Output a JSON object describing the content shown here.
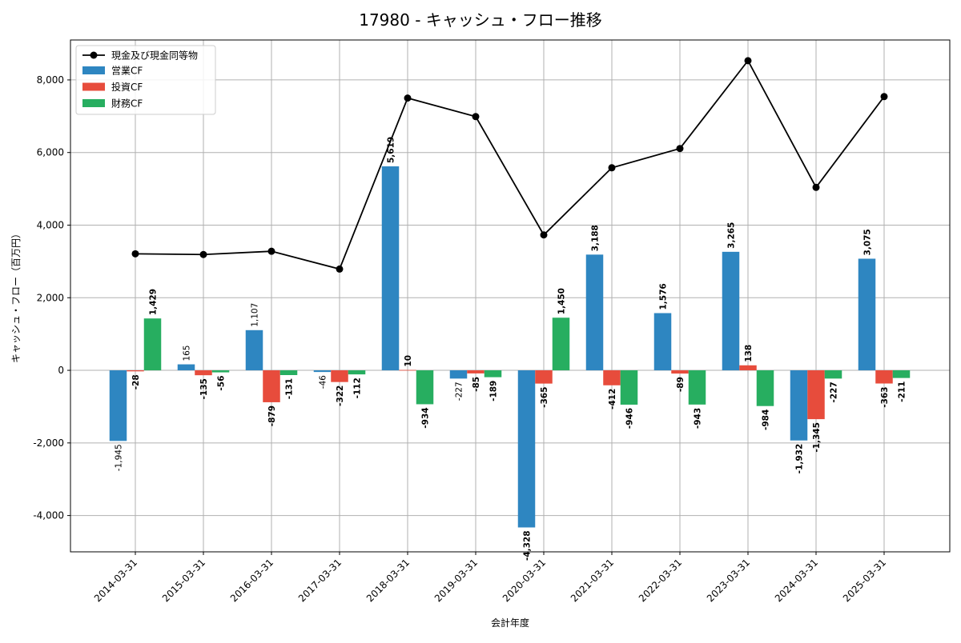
{
  "chart_data": {
    "type": "bar",
    "title": "17980 - キャッシュ・フロー推移",
    "xlabel": "会計年度",
    "ylabel": "キャッシュ・フロー（百万円）",
    "ylim": [
      -5000,
      9100
    ],
    "yticks": [
      -4000,
      -2000,
      0,
      2000,
      4000,
      6000,
      8000
    ],
    "ytick_labels": [
      "-4,000",
      "-2,000",
      "0",
      "2,000",
      "4,000",
      "6,000",
      "8,000"
    ],
    "grid": true,
    "legend_position": "top-left",
    "categories": [
      "2014-03-31",
      "2015-03-31",
      "2016-03-31",
      "2017-03-31",
      "2018-03-31",
      "2019-03-31",
      "2020-03-31",
      "2021-03-31",
      "2022-03-31",
      "2023-03-31",
      "2024-03-31",
      "2025-03-31"
    ],
    "line": {
      "name": "現金及び現金同等物",
      "color": "#000000",
      "values": [
        3210,
        3190,
        3280,
        2790,
        7500,
        6990,
        3730,
        5580,
        6110,
        8530,
        5040,
        7540
      ]
    },
    "series": [
      {
        "name": "営業CF",
        "color": "#2e86c1",
        "values": [
          -1945,
          165,
          1107,
          -46,
          5619,
          -227,
          -4328,
          3188,
          1576,
          3265,
          -1932,
          3075
        ],
        "labels": [
          "-1,945",
          "165",
          "1,107",
          "-46",
          "5,619",
          "-227",
          "-4,328",
          "3,188",
          "1,576",
          "3,265",
          "-1,932",
          "3,075"
        ]
      },
      {
        "name": "投資CF",
        "color": "#e74c3c",
        "values": [
          -28,
          -135,
          -879,
          -322,
          10,
          -85,
          -365,
          -412,
          -89,
          138,
          -1345,
          -363
        ],
        "labels": [
          "-28",
          "-135",
          "-879",
          "-322",
          "10",
          "-85",
          "-365",
          "-412",
          "-89",
          "138",
          "-1,345",
          "-363"
        ]
      },
      {
        "name": "財務CF",
        "color": "#27ae60",
        "values": [
          1429,
          -56,
          -131,
          -112,
          -934,
          -189,
          1450,
          -946,
          -943,
          -984,
          -227,
          -211
        ],
        "labels": [
          "1,429",
          "-56",
          "-131",
          "-112",
          "-934",
          "-189",
          "1,450",
          "-946",
          "-943",
          "-984",
          "-227",
          "-211"
        ]
      }
    ]
  }
}
